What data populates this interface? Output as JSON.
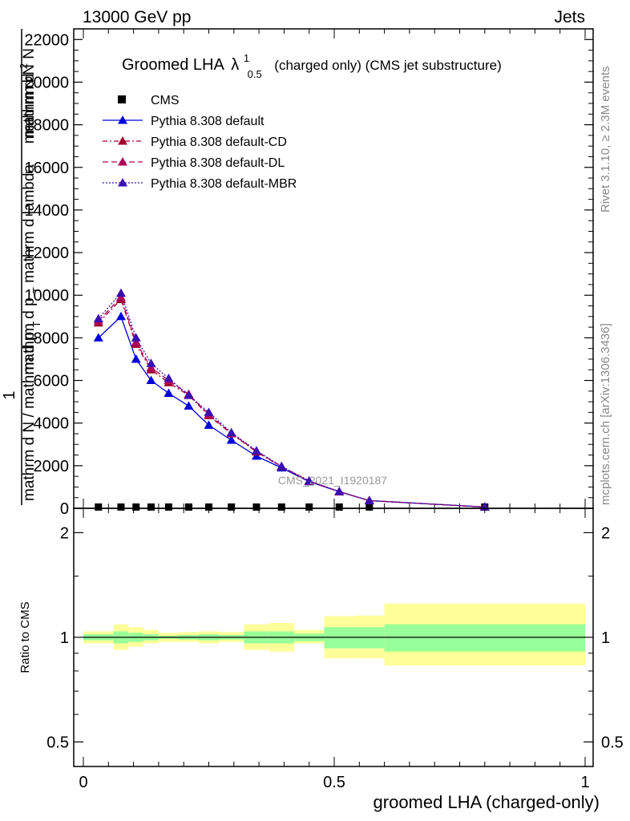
{
  "header": {
    "left": "13000 GeV pp",
    "right": "Jets"
  },
  "side_labels": {
    "rivet": "Rivet 3.1.10, ≥ 2.3M events",
    "mcplots": "mcplots.cern.ch [arXiv:1306.3436]"
  },
  "watermark": "CMS_2021_I1920187",
  "colors": {
    "cms": "#000000",
    "default": "#0000dd",
    "cd": "#a0002e",
    "dl": "#b0005a",
    "mbr": "#3a10b0",
    "band_outer": "#ffff99",
    "band_inner": "#99ff99"
  },
  "chart_data": [
    {
      "type": "line",
      "title": "Groomed LHA",
      "title_symbol": "λ",
      "title_sup": "1",
      "title_sub": "0.5",
      "title_suffix": "(charged only) (CMS jet substructure)",
      "ylabel_parts": [
        "1",
        "mathrm d N / mathrm d p",
        "T",
        "mathrm d p",
        "T",
        "mathrm d lambda",
        "mathrm d",
        "2",
        "N"
      ],
      "ylabel_display": {
        "one": "1",
        "denominator": "mathrm d N / mathrm d p",
        "den_sub": "T",
        "numerator_top": "mathrm d",
        "numerator_N": "N",
        "numerator_mid": "mathrm d p",
        "num_sub": "T",
        "numerator_end": "mathrm d lambda",
        "frac_num": "mathrm d",
        "frac_exp": "2",
        "frac_N": "N"
      },
      "ylim": [
        0,
        22500
      ],
      "yticks": [
        0,
        2000,
        4000,
        6000,
        8000,
        10000,
        12000,
        14000,
        16000,
        18000,
        20000,
        22000
      ],
      "ytick_labels": [
        "0",
        "2000",
        "4000",
        "6000",
        "8000",
        "10000",
        "12000",
        "14000",
        "16000",
        "18000",
        "20000",
        "22000"
      ],
      "x": [
        0.03,
        0.075,
        0.105,
        0.135,
        0.17,
        0.21,
        0.25,
        0.295,
        0.345,
        0.395,
        0.45,
        0.51,
        0.57,
        0.8
      ],
      "series": [
        {
          "name": "CMS",
          "key": "cms",
          "marker": "square",
          "values": [
            60,
            60,
            60,
            60,
            60,
            60,
            60,
            60,
            60,
            60,
            60,
            60,
            60,
            60
          ]
        },
        {
          "name": "Pythia 8.308 default",
          "key": "default",
          "marker": "triangle",
          "dash": "",
          "values": [
            8000,
            9000,
            7000,
            6000,
            5400,
            4800,
            3900,
            3200,
            2450,
            1900,
            1250,
            780,
            360,
            60
          ]
        },
        {
          "name": "Pythia 8.308 default-CD",
          "key": "cd",
          "marker": "triangle",
          "dash": "6,3,2,3",
          "values": [
            8700,
            9800,
            7700,
            6500,
            5900,
            5300,
            4350,
            3500,
            2650,
            1950,
            1270,
            780,
            360,
            60
          ]
        },
        {
          "name": "Pythia 8.308 default-DL",
          "key": "dl",
          "marker": "triangle",
          "dash": "7,4",
          "values": [
            8800,
            9900,
            7800,
            6600,
            6000,
            5350,
            4400,
            3520,
            2680,
            1960,
            1280,
            780,
            360,
            60
          ]
        },
        {
          "name": "Pythia 8.308 default-MBR",
          "key": "mbr",
          "marker": "triangle",
          "dash": "2,2",
          "values": [
            8900,
            10100,
            8000,
            6800,
            6100,
            5300,
            4500,
            3550,
            2700,
            1970,
            1290,
            790,
            360,
            60
          ]
        }
      ]
    },
    {
      "type": "area",
      "ylabel": "Ratio to CMS",
      "xlabel": "groomed LHA (charged-only)",
      "xlim": [
        0,
        1
      ],
      "xticks": [
        0,
        0.5,
        1
      ],
      "xtick_labels": [
        "0",
        "0.5",
        "1"
      ],
      "ylim": [
        0.425,
        2.35
      ],
      "log_y": true,
      "yticks": [
        0.5,
        1,
        2
      ],
      "ytick_labels": [
        "0.5",
        "1",
        "2"
      ],
      "bins": [
        {
          "x0": 0.0,
          "x1": 0.06,
          "inner": [
            0.98,
            1.02
          ],
          "outer": [
            0.96,
            1.04
          ]
        },
        {
          "x0": 0.06,
          "x1": 0.09,
          "inner": [
            0.96,
            1.04
          ],
          "outer": [
            0.92,
            1.09
          ]
        },
        {
          "x0": 0.09,
          "x1": 0.12,
          "inner": [
            0.97,
            1.03
          ],
          "outer": [
            0.94,
            1.07
          ]
        },
        {
          "x0": 0.12,
          "x1": 0.15,
          "inner": [
            0.98,
            1.02
          ],
          "outer": [
            0.96,
            1.05
          ]
        },
        {
          "x0": 0.15,
          "x1": 0.19,
          "inner": [
            0.99,
            1.01
          ],
          "outer": [
            0.97,
            1.03
          ]
        },
        {
          "x0": 0.19,
          "x1": 0.23,
          "inner": [
            0.985,
            1.015
          ],
          "outer": [
            0.97,
            1.035
          ]
        },
        {
          "x0": 0.23,
          "x1": 0.27,
          "inner": [
            0.98,
            1.02
          ],
          "outer": [
            0.96,
            1.04
          ]
        },
        {
          "x0": 0.27,
          "x1": 0.32,
          "inner": [
            0.985,
            1.015
          ],
          "outer": [
            0.97,
            1.035
          ]
        },
        {
          "x0": 0.32,
          "x1": 0.37,
          "inner": [
            0.96,
            1.04
          ],
          "outer": [
            0.92,
            1.09
          ]
        },
        {
          "x0": 0.37,
          "x1": 0.42,
          "inner": [
            0.96,
            1.04
          ],
          "outer": [
            0.91,
            1.1
          ]
        },
        {
          "x0": 0.42,
          "x1": 0.48,
          "inner": [
            0.975,
            1.025
          ],
          "outer": [
            0.96,
            1.05
          ]
        },
        {
          "x0": 0.48,
          "x1": 0.54,
          "inner": [
            0.93,
            1.07
          ],
          "outer": [
            0.87,
            1.15
          ]
        },
        {
          "x0": 0.54,
          "x1": 0.6,
          "inner": [
            0.93,
            1.07
          ],
          "outer": [
            0.87,
            1.155
          ]
        },
        {
          "x0": 0.6,
          "x1": 1.0,
          "inner": [
            0.91,
            1.09
          ],
          "outer": [
            0.83,
            1.25
          ]
        }
      ],
      "reference": 1.0
    }
  ]
}
